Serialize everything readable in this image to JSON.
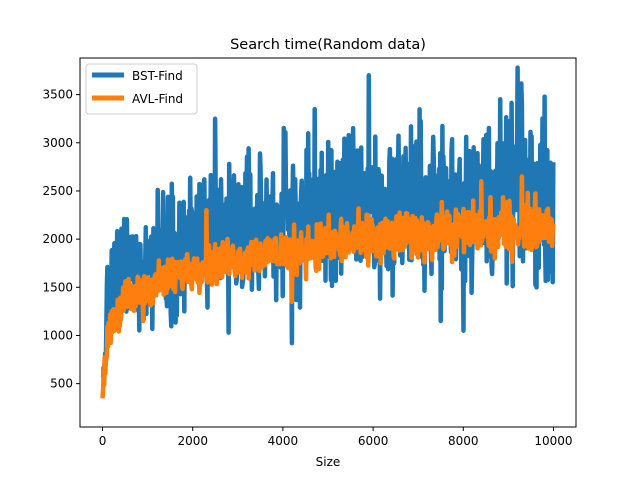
{
  "chart_data": {
    "type": "line",
    "title": "Search time(Random data)",
    "xlabel": "Size",
    "ylabel": "",
    "xlim": [
      -500,
      10500
    ],
    "ylim": [
      50,
      3880
    ],
    "x_ticks": [
      0,
      2000,
      4000,
      6000,
      8000,
      10000
    ],
    "y_ticks": [
      500,
      1000,
      1500,
      2000,
      2500,
      3000,
      3500
    ],
    "grid": false,
    "legend": "top-left",
    "series": [
      {
        "name": "BST-Find",
        "color": "#1f77b4",
        "band": {
          "x": [
            0,
            100,
            200,
            500,
            1000,
            1500,
            2000,
            3000,
            4000,
            5000,
            6000,
            7000,
            8000,
            9000,
            10000
          ],
          "low": [
            200,
            700,
            820,
            900,
            1000,
            1100,
            1150,
            1200,
            1250,
            1300,
            1350,
            1400,
            1400,
            1450,
            1500
          ],
          "high": [
            700,
            1700,
            2100,
            2400,
            2550,
            2700,
            2850,
            3000,
            3100,
            3200,
            3300,
            3350,
            3400,
            3450,
            3500
          ]
        },
        "spikes": [
          {
            "x": 2500,
            "y": 3250
          },
          {
            "x": 4700,
            "y": 3350
          },
          {
            "x": 5900,
            "y": 3700
          },
          {
            "x": 9200,
            "y": 3780
          },
          {
            "x": 4200,
            "y": 920
          },
          {
            "x": 8000,
            "y": 1050
          },
          {
            "x": 7500,
            "y": 1150
          },
          {
            "x": 2800,
            "y": 1030
          }
        ]
      },
      {
        "name": "AVL-Find",
        "color": "#ff7f0e",
        "band": {
          "x": [
            0,
            100,
            200,
            500,
            1000,
            1500,
            2000,
            3000,
            4000,
            5000,
            6000,
            7000,
            8000,
            9000,
            10000
          ],
          "low": [
            180,
            700,
            900,
            1100,
            1250,
            1350,
            1450,
            1550,
            1600,
            1650,
            1700,
            1750,
            1780,
            1800,
            1850
          ],
          "high": [
            450,
            1200,
            1400,
            1600,
            1750,
            1850,
            1950,
            2050,
            2150,
            2250,
            2300,
            2350,
            2400,
            2450,
            2500
          ]
        },
        "spikes": [
          {
            "x": 2300,
            "y": 2300
          },
          {
            "x": 8400,
            "y": 2600
          },
          {
            "x": 9300,
            "y": 2650
          },
          {
            "x": 900,
            "y": 1150
          },
          {
            "x": 4200,
            "y": 1350
          }
        ]
      }
    ]
  }
}
